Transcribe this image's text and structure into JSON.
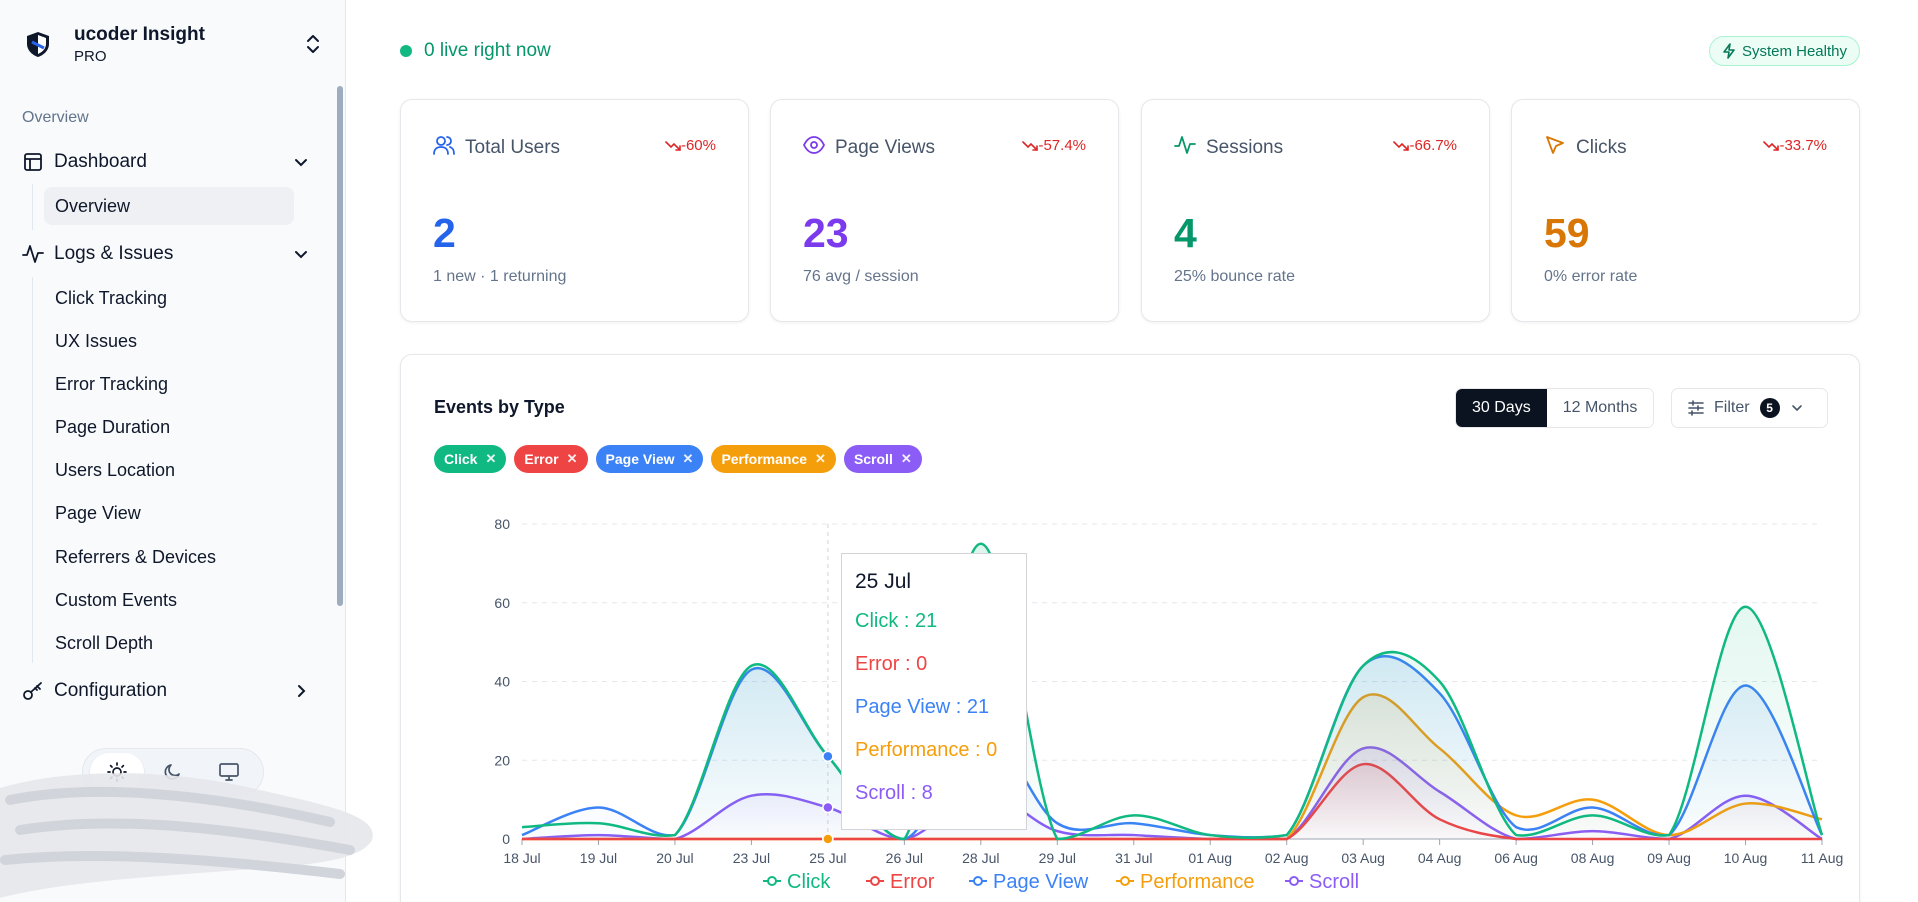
{
  "brand": {
    "name": "ucoder Insight",
    "tier": "PRO"
  },
  "sidebar": {
    "section_label": "Overview",
    "groups": [
      {
        "label": "Dashboard",
        "icon": "layout-icon",
        "expanded": true,
        "items": [
          "Overview"
        ]
      },
      {
        "label": "Logs & Issues",
        "icon": "activity-icon",
        "expanded": true,
        "items": [
          "Click Tracking",
          "UX Issues",
          "Error Tracking",
          "Page Duration",
          "Users Location",
          "Page View",
          "Referrers & Devices",
          "Custom Events",
          "Scroll Depth"
        ]
      },
      {
        "label": "Configuration",
        "icon": "key-icon",
        "expanded": false,
        "items": []
      }
    ],
    "active_item": "Overview",
    "theme_options": [
      "sun-icon",
      "moon-icon",
      "monitor-icon"
    ],
    "theme_active": "sun-icon"
  },
  "topbar": {
    "live_text": "0 live right now",
    "health_text": "System Healthy"
  },
  "cards": [
    {
      "title": "Total Users",
      "icon": "users-icon",
      "trend": "-60%",
      "value": "2",
      "sub": "1 new · 1 returning",
      "color": "#2563eb",
      "icon_color": "#2563eb"
    },
    {
      "title": "Page Views",
      "icon": "eye-icon",
      "trend": "-57.4%",
      "value": "23",
      "sub": "76 avg / session",
      "color": "#7c3aed",
      "icon_color": "#7c3aed"
    },
    {
      "title": "Sessions",
      "icon": "pulse-icon",
      "trend": "-66.7%",
      "value": "4",
      "sub": "25% bounce rate",
      "color": "#059669",
      "icon_color": "#059669"
    },
    {
      "title": "Clicks",
      "icon": "cursor-icon",
      "trend": "-33.7%",
      "value": "59",
      "sub": "0% error rate",
      "color": "#d97706",
      "icon_color": "#d97706"
    }
  ],
  "chart_panel": {
    "title": "Events by Type",
    "ranges": [
      "30 Days",
      "12 Months"
    ],
    "active_range": "30 Days",
    "filter_label": "Filter",
    "filter_count": "5",
    "chips": [
      {
        "label": "Click",
        "color": "#10b981"
      },
      {
        "label": "Error",
        "color": "#ef4444"
      },
      {
        "label": "Page View",
        "color": "#3b82f6"
      },
      {
        "label": "Performance",
        "color": "#f59e0b"
      },
      {
        "label": "Scroll",
        "color": "#8b5cf6"
      }
    ],
    "tooltip": {
      "date": "25 Jul",
      "rows": [
        {
          "label": "Click : 21",
          "color": "#10b981"
        },
        {
          "label": "Error : 0",
          "color": "#ef4444"
        },
        {
          "label": "Page View : 21",
          "color": "#3b82f6"
        },
        {
          "label": "Performance : 0",
          "color": "#f59e0b"
        },
        {
          "label": "Scroll : 8",
          "color": "#8b5cf6"
        }
      ]
    }
  },
  "chart_data": {
    "type": "area",
    "categories": [
      "18 Jul",
      "19 Jul",
      "20 Jul",
      "23 Jul",
      "25 Jul",
      "26 Jul",
      "28 Jul",
      "29 Jul",
      "31 Jul",
      "01 Aug",
      "02 Aug",
      "03 Aug",
      "04 Aug",
      "06 Aug",
      "08 Aug",
      "09 Aug",
      "10 Aug",
      "11 Aug"
    ],
    "y_ticks": [
      "0",
      "20",
      "40",
      "60",
      "80"
    ],
    "ylim": [
      0,
      80
    ],
    "grid": true,
    "legend_position": "bottom",
    "series": [
      {
        "name": "Click",
        "color": "#10b981",
        "values": [
          3,
          4,
          1,
          44,
          21,
          0,
          75,
          0,
          6,
          1,
          1,
          44,
          40,
          1,
          6,
          1,
          59,
          1
        ]
      },
      {
        "name": "Error",
        "color": "#ef4444",
        "values": [
          0,
          0,
          0,
          0,
          0,
          0,
          0,
          0,
          0,
          0,
          0,
          19,
          5,
          0,
          0,
          0,
          0,
          0
        ]
      },
      {
        "name": "Page View",
        "color": "#3b82f6",
        "values": [
          1,
          8,
          1,
          43,
          21,
          0,
          28,
          4,
          4,
          1,
          1,
          44,
          37,
          3,
          8,
          1,
          39,
          1
        ]
      },
      {
        "name": "Performance",
        "color": "#f59e0b",
        "values": [
          0,
          0,
          0,
          0,
          0,
          0,
          0,
          0,
          0,
          0,
          0,
          36,
          23,
          6,
          10,
          1,
          9,
          5
        ]
      },
      {
        "name": "Scroll",
        "color": "#8b5cf6",
        "values": [
          0,
          1,
          0,
          11,
          8,
          0,
          12,
          2,
          1,
          0,
          0,
          23,
          12,
          0,
          2,
          0,
          11,
          0
        ]
      }
    ],
    "highlight_category": "25 Jul"
  }
}
